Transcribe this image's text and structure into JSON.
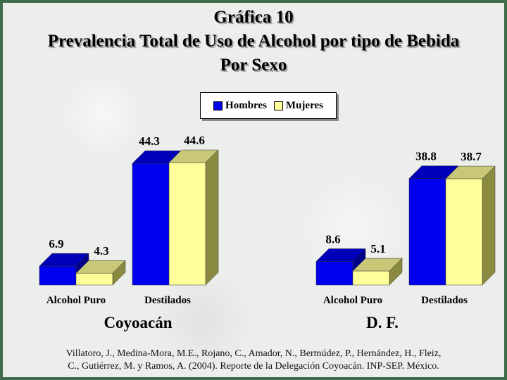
{
  "title": {
    "line1": "Gráfica 10",
    "line2": "Prevalencia Total de Uso de Alcohol por tipo de Bebida",
    "line3": "Por Sexo"
  },
  "legend": [
    {
      "label": "Hombres",
      "color": "#0000ee"
    },
    {
      "label": "Mujeres",
      "color": "#ffff99"
    }
  ],
  "source": {
    "line1": "Villatoro, J., Medina-Mora, M.E., Rojano, C., Amador, N., Bermúdez, P., Hernández, H., Fleiz,",
    "line2": "C., Gutiérrez, M. y Ramos, A. (2004). Reporte de la Delegación Coyoacán. INP-SEP. México."
  },
  "chart_data": [
    {
      "type": "bar",
      "group_label": "Coyoacán",
      "categories": [
        "Alcohol Puro",
        "Destilados"
      ],
      "series": [
        {
          "name": "Hombres",
          "values": [
            6.9,
            44.3
          ],
          "labels": [
            "6.9",
            "44.3"
          ]
        },
        {
          "name": "Mujeres",
          "values": [
            4.3,
            44.6
          ],
          "labels": [
            "4.3",
            "44.6"
          ]
        }
      ]
    },
    {
      "type": "bar",
      "group_label": "D. F.",
      "categories": [
        "Alcohol Puro",
        "Destilados"
      ],
      "series": [
        {
          "name": "Hombres",
          "values": [
            8.6,
            38.8
          ],
          "labels": [
            "8.6",
            "38.8"
          ]
        },
        {
          "name": "Mujeres",
          "values": [
            5.1,
            38.7
          ],
          "labels": [
            "5.1",
            "38.7"
          ]
        }
      ]
    }
  ]
}
